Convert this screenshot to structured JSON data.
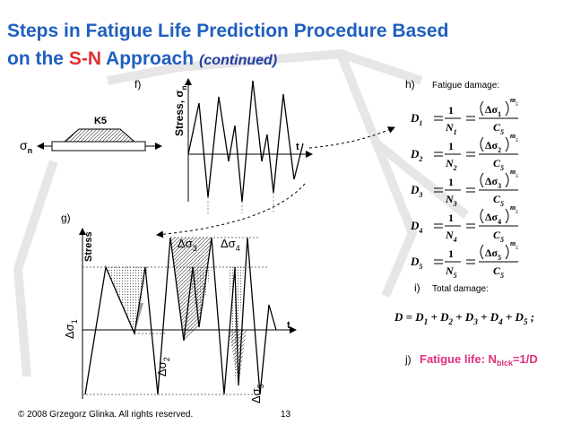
{
  "header": {
    "line1": "Steps in Fatigue Life Prediction Procedure Based",
    "line2_start": "on the ",
    "highlight": "S-N",
    "line2_end": " Approach",
    "note": "(continued)"
  },
  "panel_f": {
    "label": "f)",
    "specimen": "K5",
    "load_symbol": "σ",
    "load_sub": "n",
    "axis_y": "Stress, σ",
    "axis_y_sub": "n",
    "axis_x": "t"
  },
  "panel_g": {
    "label": "g)",
    "axis_y": "Stress",
    "axis_x": "t",
    "ranges": [
      {
        "symbol": "Δσ",
        "sub": "1"
      },
      {
        "symbol": "Δσ",
        "sub": "2"
      },
      {
        "symbol": "Δσ",
        "sub": "3"
      },
      {
        "symbol": "Δσ",
        "sub": "4"
      },
      {
        "symbol": "Δσ",
        "sub": "5"
      }
    ]
  },
  "panel_h": {
    "label": "h)",
    "heading": "Fatigue damage:",
    "equations": [
      {
        "d": "D",
        "i": "1",
        "one": "1",
        "n": "N",
        "s": "Δσ",
        "m": "m",
        "c": "C",
        "k": "5"
      },
      {
        "d": "D",
        "i": "2",
        "one": "1",
        "n": "N",
        "s": "Δσ",
        "m": "m",
        "c": "C",
        "k": "5"
      },
      {
        "d": "D",
        "i": "3",
        "one": "1",
        "n": "N",
        "s": "Δσ",
        "m": "m",
        "c": "C",
        "k": "5"
      },
      {
        "d": "D",
        "i": "4",
        "one": "1",
        "n": "N",
        "s": "Δσ",
        "m": "m",
        "c": "C",
        "k": "5"
      },
      {
        "d": "D",
        "i": "5",
        "one": "1",
        "n": "N",
        "s": "Δσ",
        "m": "m",
        "c": "C",
        "k": "5"
      }
    ]
  },
  "panel_i": {
    "label": "i)",
    "heading": "Total damage:",
    "lhs": "D = ",
    "terms": [
      "D",
      "D",
      "D",
      "D",
      "D"
    ],
    "subs": [
      "1",
      "2",
      "3",
      "4",
      "5"
    ],
    "sep": " + ",
    "end": " ;"
  },
  "panel_j": {
    "label": "j)",
    "text": "Fatigue life: N",
    "sub": "blck",
    "end": "=1/D"
  },
  "footer": {
    "copyright": "© 2008 Grzegorz Glinka.  All rights reserved.",
    "page": "13"
  }
}
